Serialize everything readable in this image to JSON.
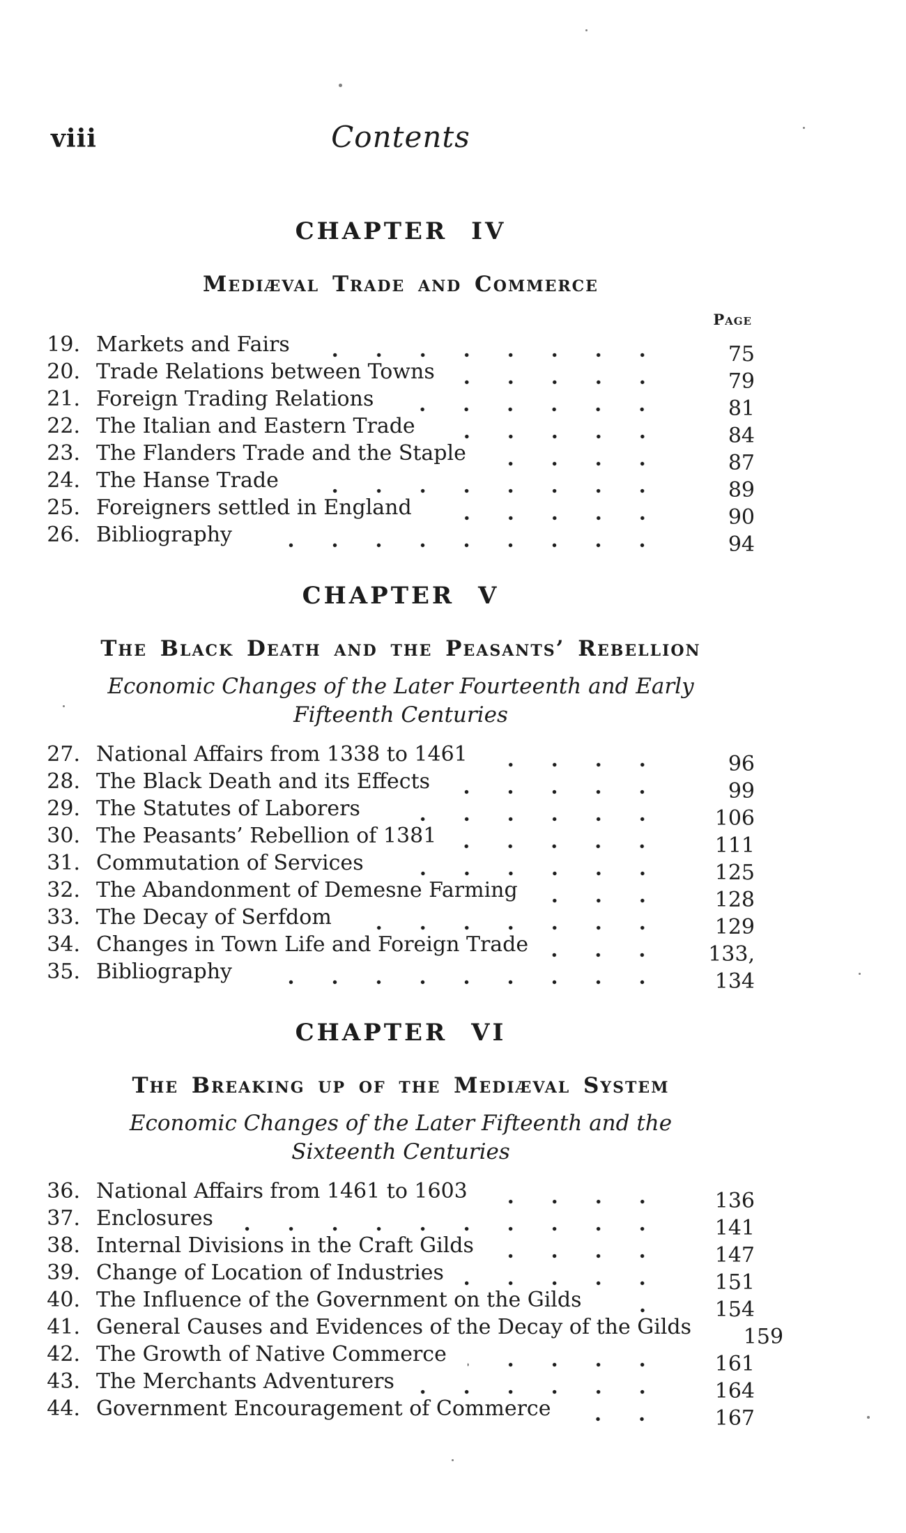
{
  "header": {
    "folio": "viii",
    "title": "Contents"
  },
  "page_column_label": "Page",
  "ink_color": "#1b1b1b",
  "paper_color": "#ffffff",
  "chapters": [
    {
      "heading": "CHAPTER IV",
      "title": "Mediæval Trade and Commerce",
      "subtitle": "",
      "show_page_label": true,
      "entries": [
        {
          "num": "19.",
          "title": "Markets and Fairs",
          "page": "75"
        },
        {
          "num": "20.",
          "title": "Trade Relations between Towns",
          "page": "79"
        },
        {
          "num": "21.",
          "title": "Foreign Trading Relations",
          "page": "81"
        },
        {
          "num": "22.",
          "title": "The Italian and Eastern Trade",
          "page": "84"
        },
        {
          "num": "23.",
          "title": "The Flanders Trade and the Staple",
          "page": "87"
        },
        {
          "num": "24.",
          "title": "The Hanse Trade",
          "page": "89"
        },
        {
          "num": "25.",
          "title": "Foreigners settled in England",
          "page": "90"
        },
        {
          "num": "26.",
          "title": "Bibliography",
          "page": "94"
        }
      ]
    },
    {
      "heading": "CHAPTER V",
      "title": "The Black Death and the Peasants’ Rebellion",
      "subtitle": "Economic Changes of the Later Fourteenth and Early Fifteenth Centuries",
      "show_page_label": false,
      "entries": [
        {
          "num": "27.",
          "title": "National Affairs from 1338 to 1461",
          "page": "96"
        },
        {
          "num": "28.",
          "title": "The Black Death and its Effects",
          "page": "99"
        },
        {
          "num": "29.",
          "title": "The Statutes of Laborers",
          "page": "106"
        },
        {
          "num": "30.",
          "title": "The Peasants’ Rebellion of 1381",
          "page": "111"
        },
        {
          "num": "31.",
          "title": "Commutation of Services",
          "page": "125"
        },
        {
          "num": "32.",
          "title": "The Abandonment of Demesne Farming",
          "page": "128"
        },
        {
          "num": "33.",
          "title": "The Decay of Serfdom",
          "page": "129"
        },
        {
          "num": "34.",
          "title": "Changes in Town Life and Foreign Trade",
          "page": "133,"
        },
        {
          "num": "35.",
          "title": "Bibliography",
          "page": "134"
        }
      ]
    },
    {
      "heading": "CHAPTER VI",
      "title": "The Breaking up of the Mediæval System",
      "subtitle": "Economic Changes of the Later Fifteenth and the Sixteenth Centuries",
      "show_page_label": false,
      "entries": [
        {
          "num": "36.",
          "title": "National Affairs from 1461 to 1603",
          "page": "136"
        },
        {
          "num": "37.",
          "title": "Enclosures",
          "page": "141"
        },
        {
          "num": "38.",
          "title": "Internal Divisions in the Craft Gilds",
          "page": "147"
        },
        {
          "num": "39.",
          "title": "Change of Location of Industries",
          "page": "151"
        },
        {
          "num": "40.",
          "title": "The Influence of the Government on the Gilds",
          "page": "154"
        },
        {
          "num": "41.",
          "title": "General Causes and Evidences of the Decay of the Gilds",
          "page": "159"
        },
        {
          "num": "42.",
          "title": "The Growth of Native Commerce",
          "page": "161"
        },
        {
          "num": "43.",
          "title": "The Merchants Adventurers",
          "page": "164"
        },
        {
          "num": "44.",
          "title": "Government Encouragement of Commerce",
          "page": "167"
        }
      ]
    }
  ]
}
